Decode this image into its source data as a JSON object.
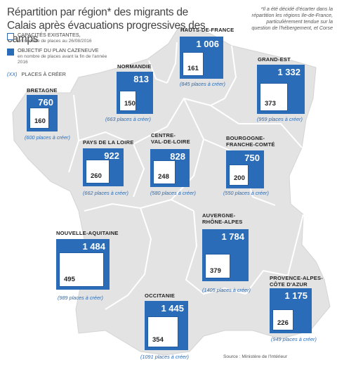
{
  "title": "Répartition par région* des migrants de Calais après évacuations progressives des camps",
  "footnote": "*Il a été décidé d'écarter dans la répartition les régions Ile-de-France, particulièrement tendue sur la question de l'hébergement, et Corse",
  "legend": {
    "capacity_label": "CAPACITÉS EXISTANTES,",
    "capacity_sub": "en nombre de places au 26/08/2016",
    "target_label": "OBJECTIF DU PLAN CAZENEUVE",
    "target_sub": "en nombre de places avant la fin de l'année 2016",
    "places_symbol": "(XX)",
    "places_label": "PLACES À CRÉER"
  },
  "colors": {
    "target": "#2a6cb7",
    "map": "#e3e3e3",
    "border": "#ffffff"
  },
  "regions": [
    {
      "name": "HAUTS-DE-FRANCE",
      "target": "1 006",
      "capacity": "161",
      "places": "(845 places à créer)"
    },
    {
      "name": "NORMANDIE",
      "target": "813",
      "capacity": "150",
      "places": "(663 places à créer)"
    },
    {
      "name": "GRAND-EST",
      "target": "1 332",
      "capacity": "373",
      "places": "(959 places à créer)"
    },
    {
      "name": "BRETAGNE",
      "target": "760",
      "capacity": "160",
      "places": "(600 places à créer)"
    },
    {
      "name": "PAYS DE LA LOIRE",
      "target": "922",
      "capacity": "260",
      "places": "(662 places à créer)"
    },
    {
      "name": "CENTRE-\nVAL-DE-LOIRE",
      "target": "828",
      "capacity": "248",
      "places": "(580 places à créer)"
    },
    {
      "name": "BOURGOGNE-\nFRANCHE-COMTÉ",
      "target": "750",
      "capacity": "200",
      "places": "(550 places à créer)"
    },
    {
      "name": "NOUVELLE-AQUITAINE",
      "target": "1 484",
      "capacity": "495",
      "places": "(989 places à créer)"
    },
    {
      "name": "AUVERGNE-\nRHÔNE-ALPES",
      "target": "1 784",
      "capacity": "379",
      "places": "(1405 places à créer)"
    },
    {
      "name": "OCCITANIE",
      "target": "1 445",
      "capacity": "354",
      "places": "(1091 places à créer)"
    },
    {
      "name": "PROVENCE-ALPES-\nCÔTE D'AZUR",
      "target": "1 175",
      "capacity": "226",
      "places": "(949 places à créer)"
    }
  ],
  "source": "Source : Ministère de l'Intérieur"
}
